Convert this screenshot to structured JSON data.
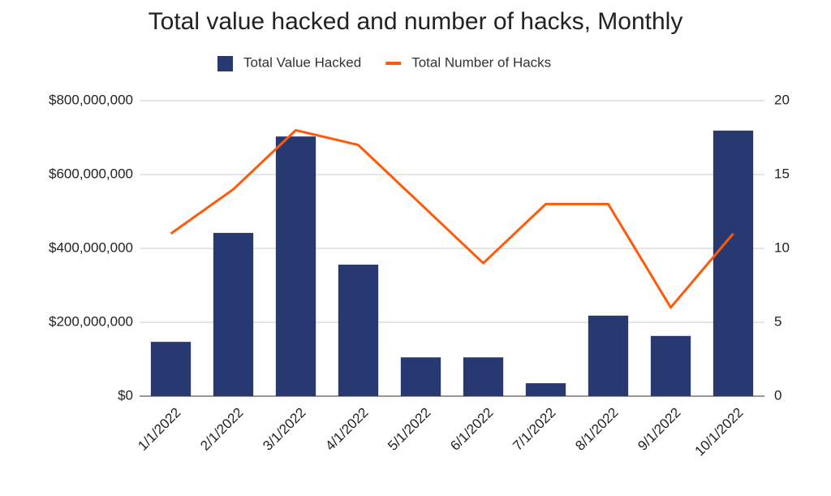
{
  "chart_data": {
    "type": "combo",
    "title": "Total value hacked and number of hacks, Monthly",
    "categories": [
      "1/1/2022",
      "2/1/2022",
      "3/1/2022",
      "4/1/2022",
      "5/1/2022",
      "6/1/2022",
      "7/1/2022",
      "8/1/2022",
      "9/1/2022",
      "10/1/2022"
    ],
    "series": [
      {
        "name": "Total Value Hacked",
        "type": "bar",
        "color": "#283870",
        "values": [
          147000000,
          442000000,
          703000000,
          356000000,
          105000000,
          105000000,
          35000000,
          218000000,
          163000000,
          719000000
        ]
      },
      {
        "name": "Total Number of Hacks",
        "type": "line",
        "axis": "y2",
        "color": "#ff5a0a",
        "values": [
          11,
          14,
          18,
          17,
          13,
          9,
          13,
          13,
          6,
          11
        ]
      }
    ],
    "ylim": [
      0,
      800000000
    ],
    "yticks": [
      {
        "value": 0,
        "label": "$0"
      },
      {
        "value": 200000000,
        "label": "$200,000,000"
      },
      {
        "value": 400000000,
        "label": "$400,000,000"
      },
      {
        "value": 600000000,
        "label": "$600,000,000"
      },
      {
        "value": 800000000,
        "label": "$800,000,000"
      }
    ],
    "y2lim": [
      0,
      20
    ],
    "y2ticks": [
      0,
      5,
      10,
      15,
      20
    ],
    "grid": true,
    "legend": "top"
  }
}
